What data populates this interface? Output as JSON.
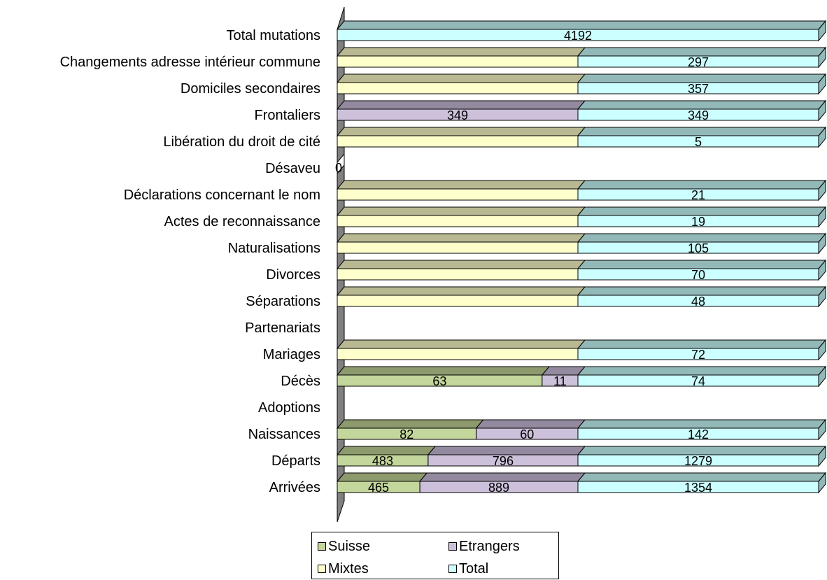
{
  "chart_data": {
    "type": "bar",
    "orientation": "horizontal",
    "stacked": true,
    "three_d": true,
    "categories": [
      "Total mutations",
      "Changements adresse intérieur commune",
      "Domiciles secondaires",
      "Frontaliers",
      "Libération du droit de cité",
      "Désaveu",
      "Déclarations concernant le nom",
      "Actes de reconnaissance",
      "Naturalisations",
      "Divorces",
      "Séparations",
      "Partenariats",
      "Mariages",
      "Décès",
      "Adoptions",
      "Naissances",
      "Départs",
      "Arrivées"
    ],
    "series": [
      {
        "name": "Suisse",
        "color": "#c3d69b",
        "top_color": "#8c9a6e",
        "values": [
          null,
          null,
          null,
          null,
          null,
          null,
          null,
          null,
          null,
          null,
          null,
          null,
          null,
          63,
          null,
          82,
          483,
          465
        ]
      },
      {
        "name": "Etrangers",
        "color": "#ccc0da",
        "top_color": "#938aa0",
        "values": [
          null,
          null,
          null,
          349,
          null,
          null,
          null,
          null,
          null,
          null,
          null,
          null,
          null,
          11,
          null,
          60,
          796,
          889
        ]
      },
      {
        "name": "Mixtes",
        "color": "#ffffcc",
        "top_color": "#b8b892",
        "values": [
          null,
          297,
          357,
          null,
          5,
          null,
          21,
          19,
          105,
          70,
          48,
          null,
          72,
          null,
          null,
          null,
          null,
          null
        ]
      },
      {
        "name": "Total",
        "color": "#ccffff",
        "top_color": "#93b8b8",
        "values": [
          4192,
          297,
          357,
          349,
          5,
          0,
          21,
          19,
          105,
          70,
          48,
          null,
          72,
          74,
          null,
          142,
          1279,
          1354
        ]
      }
    ],
    "data_labels": [
      [
        "4192"
      ],
      [
        "297"
      ],
      [
        "357"
      ],
      [
        "349",
        "349"
      ],
      [
        "5"
      ],
      [
        "0"
      ],
      [
        "21"
      ],
      [
        "19"
      ],
      [
        "105"
      ],
      [
        "70"
      ],
      [
        "48"
      ],
      [],
      [
        "72"
      ],
      [
        "63",
        "11",
        "74"
      ],
      [],
      [
        "82",
        "60",
        "142"
      ],
      [
        "483",
        "796",
        "1279"
      ],
      [
        "465",
        "889",
        "1354"
      ]
    ],
    "legend": {
      "placement": "bottom",
      "entries": [
        "Suisse",
        "Etrangers",
        "Mixtes",
        "Total"
      ]
    },
    "xaxis_visible": false,
    "grid": false
  }
}
